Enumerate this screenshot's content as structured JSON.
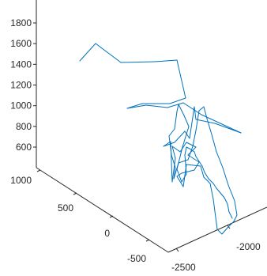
{
  "chart_data": {
    "type": "line",
    "projection": "3d",
    "title": "",
    "xlabel": "",
    "ylabel": "",
    "zlabel": "",
    "grid": false,
    "line_color": "#0072BD",
    "axes": {
      "z": {
        "ticks": [
          {
            "value": 600,
            "label": "600"
          },
          {
            "value": 800,
            "label": "800"
          },
          {
            "value": 1000,
            "label": "1000"
          },
          {
            "value": 1200,
            "label": "1200"
          },
          {
            "value": 1400,
            "label": "1400"
          },
          {
            "value": 1600,
            "label": "1600"
          },
          {
            "value": 1800,
            "label": "1800"
          }
        ]
      },
      "y": {
        "ticks": [
          {
            "value": 1000,
            "label": "1000"
          },
          {
            "value": 500,
            "label": "500"
          },
          {
            "value": 0,
            "label": "0"
          },
          {
            "value": -500,
            "label": "-500"
          }
        ]
      },
      "x": {
        "ticks": [
          {
            "value": -2500,
            "label": "-2500"
          },
          {
            "value": -2000,
            "label": "-2000"
          }
        ]
      }
    },
    "trace_points": [
      [
        101,
        77
      ],
      [
        121,
        55
      ],
      [
        153,
        79
      ],
      [
        196,
        78
      ],
      [
        224,
        76
      ],
      [
        235,
        124
      ],
      [
        215,
        131
      ],
      [
        180,
        131
      ],
      [
        161,
        137
      ],
      [
        185,
        133
      ],
      [
        212,
        136
      ],
      [
        232,
        130
      ],
      [
        255,
        145
      ],
      [
        305,
        168
      ],
      [
        272,
        156
      ],
      [
        248,
        151
      ],
      [
        246,
        135
      ],
      [
        240,
        175
      ],
      [
        234,
        166
      ],
      [
        221,
        180
      ],
      [
        207,
        185
      ],
      [
        216,
        179
      ],
      [
        218,
        230
      ],
      [
        222,
        200
      ],
      [
        218,
        185
      ],
      [
        228,
        192
      ],
      [
        236,
        180
      ],
      [
        248,
        186
      ],
      [
        238,
        196
      ],
      [
        252,
        205
      ],
      [
        246,
        215
      ],
      [
        230,
        219
      ],
      [
        224,
        223
      ],
      [
        232,
        236
      ],
      [
        236,
        208
      ],
      [
        254,
        210
      ],
      [
        258,
        224
      ],
      [
        266,
        232
      ],
      [
        270,
        252
      ],
      [
        275,
        290
      ],
      [
        281,
        296
      ],
      [
        288,
        288
      ],
      [
        296,
        280
      ],
      [
        300,
        272
      ],
      [
        297,
        254
      ],
      [
        289,
        234
      ],
      [
        282,
        212
      ],
      [
        274,
        192
      ],
      [
        268,
        170
      ],
      [
        262,
        150
      ],
      [
        258,
        135
      ],
      [
        252,
        140
      ],
      [
        248,
        165
      ],
      [
        244,
        185
      ],
      [
        238,
        202
      ],
      [
        226,
        206
      ],
      [
        220,
        226
      ],
      [
        222,
        212
      ],
      [
        217,
        196
      ],
      [
        214,
        172
      ],
      [
        221,
        163
      ],
      [
        224,
        141
      ],
      [
        226,
        132
      ],
      [
        233,
        146
      ],
      [
        239,
        160
      ],
      [
        231,
        186
      ],
      [
        224,
        214
      ],
      [
        230,
        230
      ],
      [
        236,
        220
      ],
      [
        234,
        196
      ],
      [
        236,
        186
      ],
      [
        240,
        188
      ],
      [
        246,
        192
      ],
      [
        248,
        198
      ],
      [
        252,
        204
      ],
      [
        256,
        210
      ],
      [
        259,
        218
      ],
      [
        264,
        226
      ],
      [
        270,
        232
      ],
      [
        274,
        238
      ],
      [
        279,
        244
      ],
      [
        284,
        250
      ],
      [
        288,
        258
      ],
      [
        290,
        268
      ],
      [
        294,
        276
      ]
    ]
  }
}
